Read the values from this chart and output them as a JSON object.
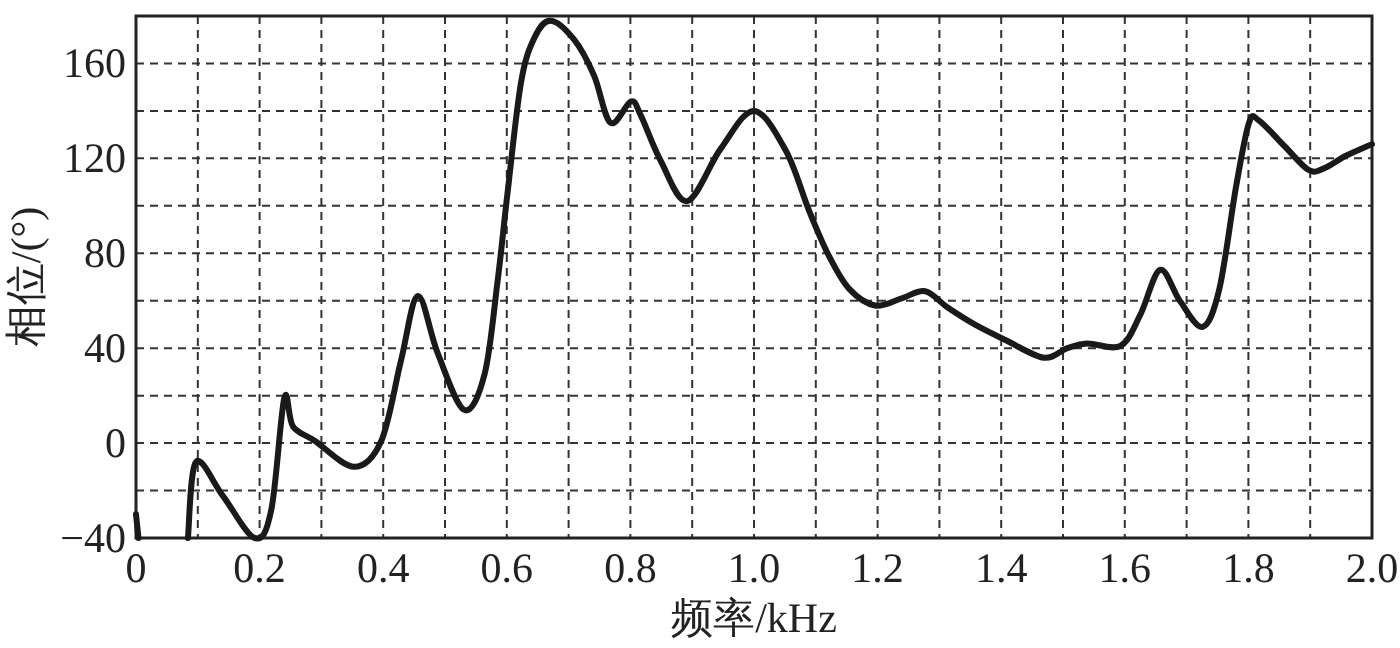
{
  "chart_data": {
    "type": "line",
    "xlabel": "频率/kHz",
    "ylabel": "相位/(°)",
    "xlim": [
      0,
      2.0
    ],
    "xticks": [
      0,
      {
        "value": 0.1,
        "label": null
      },
      0.2,
      {
        "value": 0.3,
        "label": null
      },
      0.4,
      {
        "value": 0.5,
        "label": null
      },
      0.6,
      {
        "value": 0.7,
        "label": null
      },
      0.8,
      {
        "value": 0.9,
        "label": null
      },
      {
        "value": 1.0,
        "label": "1.0"
      },
      {
        "value": 1.1,
        "label": null
      },
      1.2,
      {
        "value": 1.3,
        "label": null
      },
      1.4,
      {
        "value": 1.5,
        "label": null
      },
      1.6,
      {
        "value": 1.7,
        "label": null
      },
      1.8,
      {
        "value": 1.9,
        "label": null
      },
      {
        "value": 2.0,
        "label": "2.0"
      }
    ],
    "ylim": [
      -40,
      180
    ],
    "yticks": [
      -40,
      {
        "value": -20,
        "label": null
      },
      0,
      {
        "value": 20,
        "label": null
      },
      40,
      {
        "value": 60,
        "label": null
      },
      80,
      {
        "value": 100,
        "label": null
      },
      120,
      {
        "value": 140,
        "label": null
      },
      160
    ],
    "grid": true,
    "line_style": "solid",
    "marker": "none",
    "series": [
      {
        "color": "#1a1a1a",
        "x": [
          0,
          0.004
        ],
        "values": [
          -30,
          -40
        ]
      },
      {
        "color": "#1a1a1a",
        "x": [
          0.084,
          0.097,
          0.14,
          0.192,
          0.219,
          0.24,
          0.254,
          0.289,
          0.353,
          0.397,
          0.429,
          0.456,
          0.488,
          0.531,
          0.564,
          0.585,
          0.601,
          0.623,
          0.645,
          0.671,
          0.709,
          0.741,
          0.768,
          0.801,
          0.817,
          0.849,
          0.892,
          0.946,
          1.0,
          1.052,
          1.089,
          1.121,
          1.154,
          1.196,
          1.239,
          1.277,
          1.314,
          1.357,
          1.41,
          1.469,
          1.507,
          1.539,
          1.593,
          1.625,
          1.657,
          1.689,
          1.726,
          1.753,
          1.78,
          1.801,
          1.817,
          1.859,
          1.898,
          1.924,
          1.957,
          2.0
        ],
        "values": [
          -40,
          -8,
          -22,
          -40,
          -28,
          19,
          7,
          1,
          -10,
          1,
          35,
          62,
          38,
          14,
          29,
          68,
          105,
          152,
          171,
          178,
          170,
          155,
          135,
          144,
          138,
          119,
          102,
          124,
          140,
          123,
          98,
          79,
          65,
          58,
          61,
          64,
          57,
          50,
          43,
          36,
          40,
          42,
          41,
          54,
          73,
          60,
          49,
          65,
          108,
          135,
          136,
          125,
          115,
          116,
          121,
          126
        ]
      }
    ]
  }
}
